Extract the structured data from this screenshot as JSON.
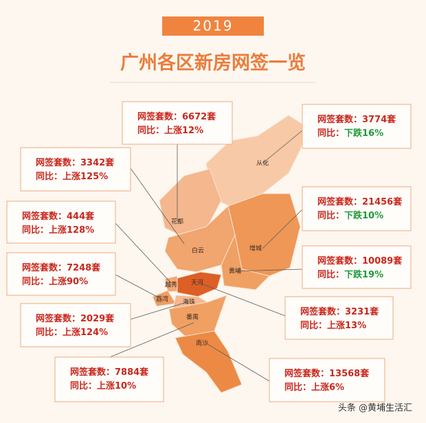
{
  "header": {
    "year": "2019",
    "title": "广州各区新房网签一览"
  },
  "districts": [
    {
      "label": "从化",
      "color": "#f7c9a6"
    },
    {
      "label": "花都",
      "color": "#f4b78e"
    },
    {
      "label": "白云",
      "color": "#f1a56f"
    },
    {
      "label": "增城",
      "color": "#ee9757"
    },
    {
      "label": "黄埔",
      "color": "#f0a063"
    },
    {
      "label": "天河",
      "color": "#dd5f25"
    },
    {
      "label": "越秀",
      "color": "#f2a772"
    },
    {
      "label": "荔湾",
      "color": "#ef9d62"
    },
    {
      "label": "海珠",
      "color": "#f4b78e"
    },
    {
      "label": "番禺",
      "color": "#f0a063"
    },
    {
      "label": "南沙",
      "color": "#ec8a45"
    }
  ],
  "callouts": [
    {
      "count": "网签套数：6672套",
      "yoy_prefix": "同比：",
      "yoy": "上涨12%",
      "yoy_color": "#c8281e"
    },
    {
      "count": "网签套数：3774套",
      "yoy_prefix": "同比：",
      "yoy": "下跌16%",
      "yoy_color": "#1f9a3a"
    },
    {
      "count": "网签套数：3342套",
      "yoy_prefix": "同比：",
      "yoy": "上涨125%",
      "yoy_color": "#c8281e"
    },
    {
      "count": "网签套数：444套",
      "yoy_prefix": "同比：",
      "yoy": "上涨128%",
      "yoy_color": "#c8281e"
    },
    {
      "count": "网签套数：7248套",
      "yoy_prefix": "同比：",
      "yoy": "上涨90%",
      "yoy_color": "#c8281e"
    },
    {
      "count": "网签套数：21456套",
      "yoy_prefix": "同比：",
      "yoy": "下跌10%",
      "yoy_color": "#1f9a3a"
    },
    {
      "count": "网签套数：10089套",
      "yoy_prefix": "同比：",
      "yoy": "下跌19%",
      "yoy_color": "#1f9a3a"
    },
    {
      "count": "网签套数：3231套",
      "yoy_prefix": "同比：",
      "yoy": "上涨13%",
      "yoy_color": "#c8281e"
    },
    {
      "count": "网签套数：2029套",
      "yoy_prefix": "同比：",
      "yoy": "上涨124%",
      "yoy_color": "#c8281e"
    },
    {
      "count": "网签套数：7884套",
      "yoy_prefix": "同比：",
      "yoy": "上涨10%",
      "yoy_color": "#c8281e"
    },
    {
      "count": "网签套数：13568套",
      "yoy_prefix": "同比：",
      "yoy": "上涨6%",
      "yoy_color": "#c8281e"
    }
  ],
  "footer": "头条 @黄埔生活汇"
}
